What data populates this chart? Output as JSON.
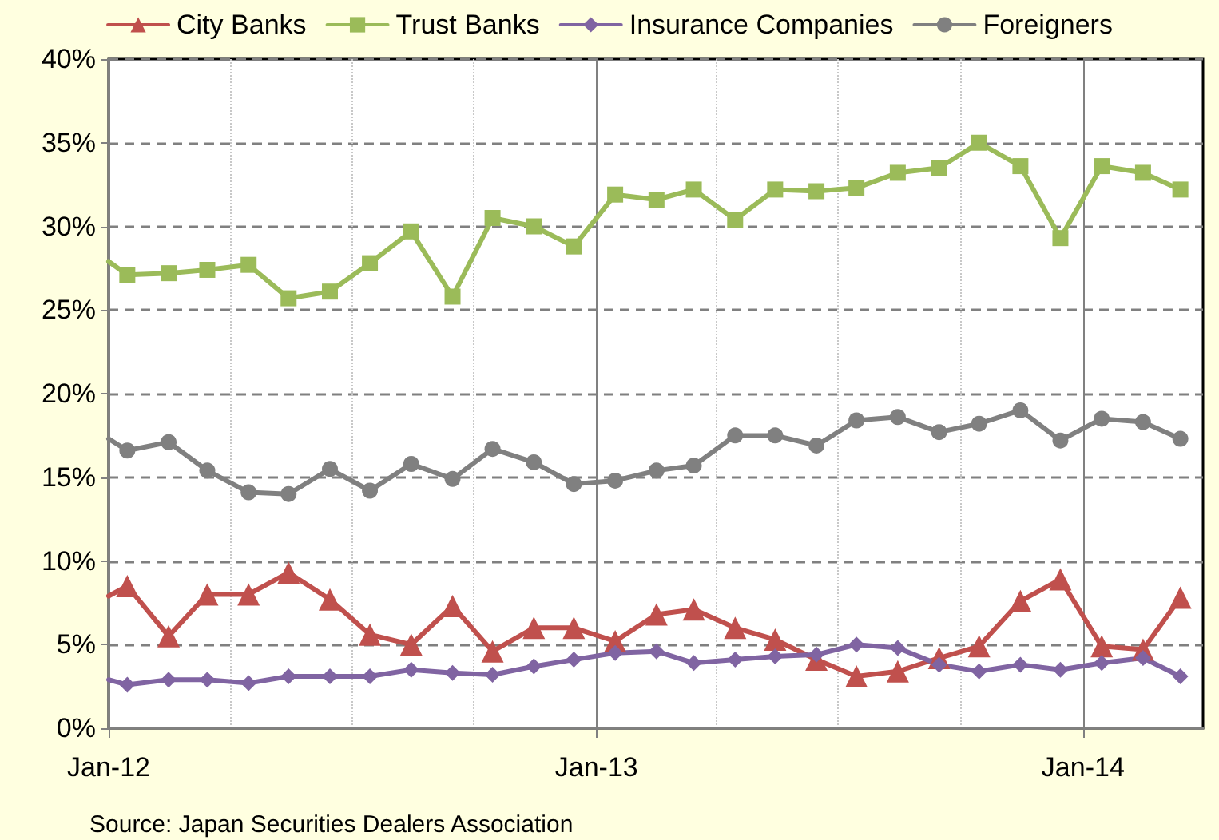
{
  "chart_data": {
    "type": "line",
    "x": [
      "2012-01-01",
      "2012-01-15",
      "2012-02-15",
      "2012-03-15",
      "2012-04-15",
      "2012-05-15",
      "2012-06-15",
      "2012-07-15",
      "2012-08-15",
      "2012-09-15",
      "2012-10-15",
      "2012-11-15",
      "2012-12-15",
      "2013-01-15",
      "2013-02-15",
      "2013-03-15",
      "2013-04-15",
      "2013-05-15",
      "2013-06-15",
      "2013-07-15",
      "2013-08-15",
      "2013-09-15",
      "2013-10-15",
      "2013-11-15",
      "2013-12-15",
      "2014-01-15",
      "2014-02-15",
      "2014-03-15"
    ],
    "series": [
      {
        "name": "City Banks",
        "color": "#c0504d",
        "marker": "triangle",
        "values": [
          7.9,
          8.5,
          5.5,
          8.0,
          8.0,
          9.3,
          7.7,
          5.6,
          5.0,
          7.3,
          4.6,
          6.0,
          6.0,
          5.2,
          6.8,
          7.1,
          6.0,
          5.3,
          4.1,
          3.1,
          3.4,
          4.2,
          4.9,
          7.6,
          8.9,
          4.9,
          4.7,
          7.8
        ]
      },
      {
        "name": "Trust Banks",
        "color": "#9bbb59",
        "marker": "square",
        "values": [
          27.9,
          27.1,
          27.2,
          27.4,
          27.7,
          25.7,
          26.1,
          27.8,
          29.7,
          25.8,
          30.5,
          30.0,
          28.8,
          31.9,
          31.6,
          32.2,
          30.4,
          32.2,
          32.1,
          32.3,
          33.2,
          33.5,
          35.0,
          33.6,
          29.3,
          33.6,
          33.2,
          32.2
        ]
      },
      {
        "name": "Insurance Companies",
        "color": "#8064a2",
        "marker": "diamond",
        "values": [
          2.9,
          2.6,
          2.9,
          2.9,
          2.7,
          3.1,
          3.1,
          3.1,
          3.5,
          3.3,
          3.2,
          3.7,
          4.1,
          4.5,
          4.6,
          3.9,
          4.1,
          4.3,
          4.4,
          5.0,
          4.8,
          3.8,
          3.4,
          3.8,
          3.5,
          3.9,
          4.2,
          3.1
        ]
      },
      {
        "name": "Foreigners",
        "color": "#808080",
        "marker": "circle",
        "values": [
          17.3,
          16.6,
          17.1,
          15.4,
          14.1,
          14.0,
          15.5,
          14.2,
          15.8,
          14.9,
          16.7,
          15.9,
          14.6,
          14.8,
          15.4,
          15.7,
          17.5,
          17.5,
          16.9,
          18.4,
          18.6,
          17.7,
          18.2,
          19.0,
          17.2,
          18.5,
          18.3,
          17.3
        ]
      }
    ],
    "xlim": [
      "2012-01-01",
      "2014-04-01"
    ],
    "xticks": [
      {
        "value": "2012-01-01",
        "label": "Jan-12"
      },
      {
        "value": "2012-04-01",
        "label": null
      },
      {
        "value": "2012-07-01",
        "label": null
      },
      {
        "value": "2012-10-01",
        "label": null
      },
      {
        "value": "2013-01-01",
        "label": "Jan-13"
      },
      {
        "value": "2013-04-01",
        "label": null
      },
      {
        "value": "2013-07-01",
        "label": null
      },
      {
        "value": "2013-10-01",
        "label": null
      },
      {
        "value": "2014-01-01",
        "label": "Jan-14"
      }
    ],
    "ylim": [
      0,
      40
    ],
    "yticks": [
      {
        "value": 0,
        "label": "0%"
      },
      {
        "value": 5,
        "label": "5%"
      },
      {
        "value": 10,
        "label": "10%"
      },
      {
        "value": 15,
        "label": "15%"
      },
      {
        "value": 20,
        "label": "20%"
      },
      {
        "value": 25,
        "label": "25%"
      },
      {
        "value": 30,
        "label": "30%"
      },
      {
        "value": 35,
        "label": "35%"
      },
      {
        "value": 40,
        "label": "40%"
      }
    ],
    "grid": true,
    "legend": "top",
    "line_style": "solid",
    "annotations": [
      "Source: Japan Securities Dealers Association"
    ]
  }
}
